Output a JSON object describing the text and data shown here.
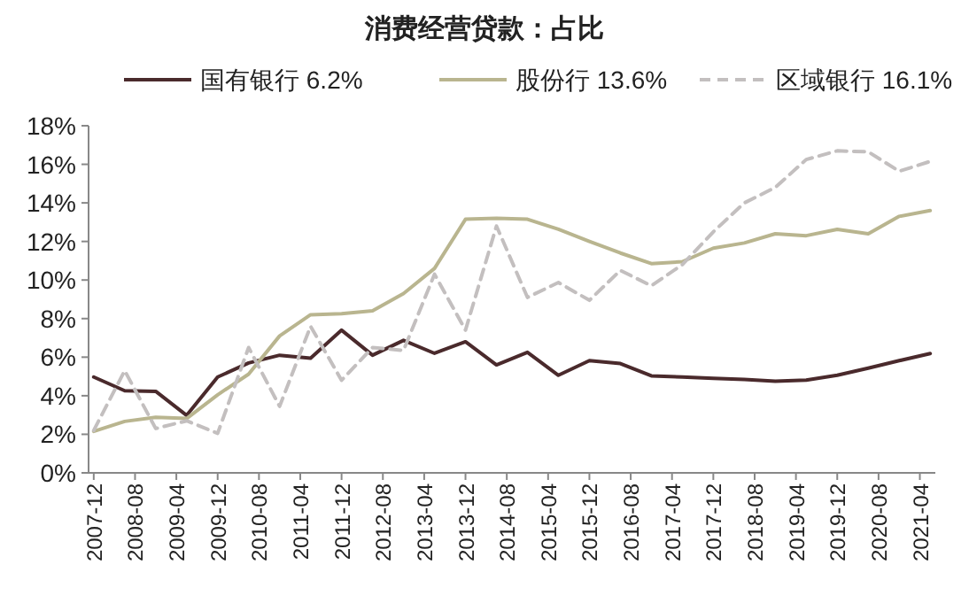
{
  "chart_data": {
    "type": "line",
    "title": "消费经营贷款：占比",
    "x": [
      "2007-12",
      "2008-06",
      "2008-12",
      "2009-06",
      "2009-12",
      "2010-06",
      "2010-12",
      "2011-06",
      "2011-12",
      "2012-06",
      "2012-12",
      "2013-06",
      "2013-12",
      "2014-06",
      "2014-12",
      "2015-06",
      "2015-12",
      "2016-06",
      "2016-12",
      "2017-06",
      "2017-12",
      "2018-06",
      "2018-12",
      "2019-06",
      "2019-12",
      "2020-06",
      "2020-12",
      "2021-06"
    ],
    "series": [
      {
        "name": "国有银行  6.2%",
        "color": "#4a2a2c",
        "line_style": "solid",
        "values": [
          4.97,
          4.26,
          4.23,
          2.98,
          4.97,
          5.7,
          6.1,
          5.95,
          7.4,
          6.1,
          6.87,
          6.2,
          6.8,
          5.6,
          6.25,
          5.06,
          5.82,
          5.67,
          5.03,
          4.97,
          4.9,
          4.84,
          4.75,
          4.81,
          5.06,
          5.43,
          5.82,
          6.19
        ]
      },
      {
        "name": "股份行  13.6%",
        "color": "#b9b58f",
        "line_style": "solid",
        "values": [
          2.15,
          2.67,
          2.88,
          2.82,
          4.05,
          5.12,
          7.1,
          8.2,
          8.25,
          8.4,
          9.3,
          10.6,
          13.15,
          13.2,
          13.15,
          12.63,
          12.0,
          11.4,
          10.85,
          10.95,
          11.65,
          11.92,
          12.4,
          12.3,
          12.63,
          12.4,
          13.3,
          13.6
        ]
      },
      {
        "name": "区域银行  16.1%",
        "color": "#c3bfbf",
        "line_style": "dashed",
        "values": [
          2.2,
          5.3,
          2.3,
          2.7,
          2.05,
          6.5,
          3.45,
          7.6,
          4.8,
          6.5,
          6.35,
          10.3,
          7.4,
          12.8,
          9.1,
          9.87,
          8.95,
          10.5,
          9.7,
          10.8,
          12.5,
          14.0,
          14.8,
          16.25,
          16.7,
          16.65,
          15.64,
          16.15
        ]
      }
    ],
    "xlim": [
      "2007-11",
      "2021-07"
    ],
    "xticks": [
      "2007-12",
      "2008-08",
      "2009-04",
      "2009-12",
      "2010-08",
      "2011-04",
      "2011-12",
      "2012-08",
      "2013-04",
      "2013-12",
      "2014-08",
      "2015-04",
      "2015-12",
      "2016-08",
      "2017-04",
      "2017-12",
      "2018-08",
      "2019-04",
      "2019-12",
      "2020-08",
      "2021-04"
    ],
    "ylim": [
      0,
      18
    ],
    "yticks": [
      {
        "value": 0,
        "label": "0%"
      },
      {
        "value": 2,
        "label": "2%"
      },
      {
        "value": 4,
        "label": "4%"
      },
      {
        "value": 6,
        "label": "6%"
      },
      {
        "value": 8,
        "label": "8%"
      },
      {
        "value": 10,
        "label": "10%"
      },
      {
        "value": 12,
        "label": "12%"
      },
      {
        "value": 14,
        "label": "14%"
      },
      {
        "value": 16,
        "label": "16%"
      },
      {
        "value": 18,
        "label": "18%"
      }
    ],
    "grid": false,
    "legend": "top"
  }
}
